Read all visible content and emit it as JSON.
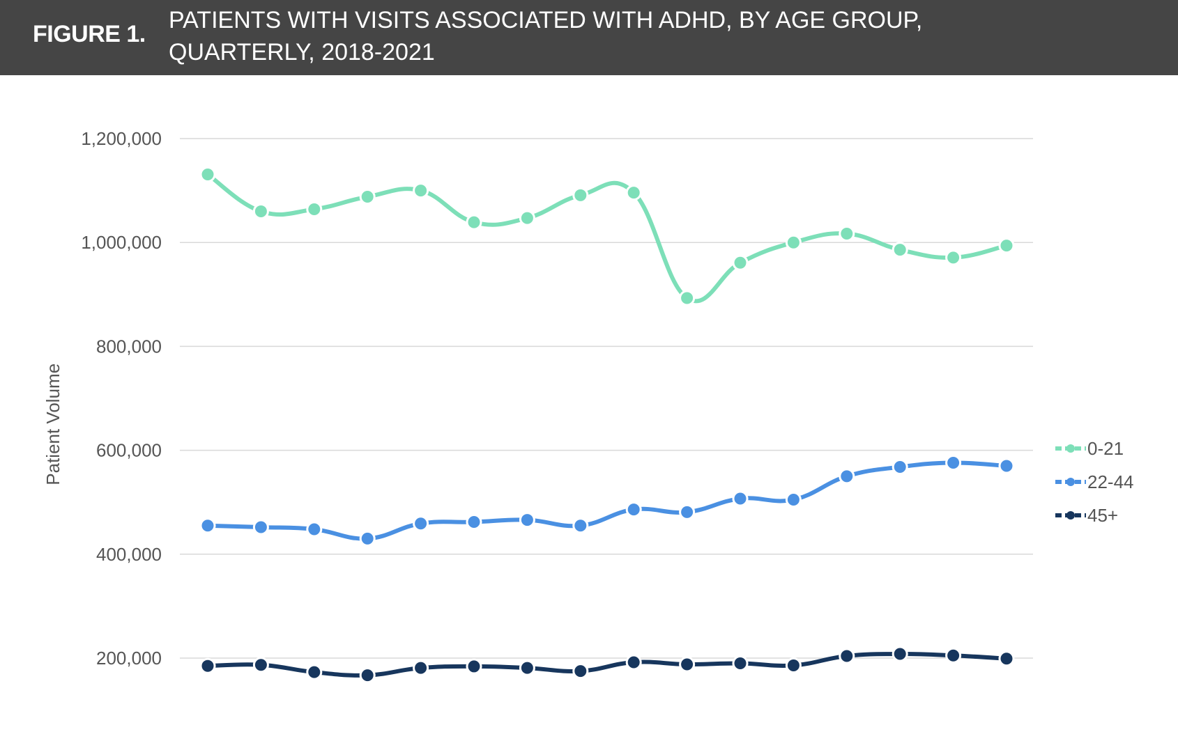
{
  "header": {
    "figure_label": "FIGURE 1.",
    "title_line1": "PATIENTS WITH VISITS ASSOCIATED WITH ADHD, BY AGE GROUP,",
    "title_line2": "QUARTERLY, 2018-2021"
  },
  "colors": {
    "header_bg": "#454545",
    "grid": "#d9d9d9"
  },
  "chart_data": {
    "type": "line",
    "title": "PATIENTS WITH VISITS ASSOCIATED WITH ADHD, BY AGE GROUP, QUARTERLY, 2018-2021",
    "xlabel": "",
    "ylabel": "Patient Volume",
    "ylim": [
      200000,
      1200000
    ],
    "yticks": [
      200000,
      400000,
      600000,
      800000,
      1000000,
      1200000
    ],
    "ytick_labels": [
      "200,000",
      "400,000",
      "600,000",
      "800,000",
      "1,000,000",
      "1,200,000"
    ],
    "grid": "horizontal",
    "legend": "right",
    "x": [
      1,
      2,
      3,
      4,
      5,
      6,
      7,
      8,
      9,
      10,
      11,
      12,
      13,
      14,
      15,
      16
    ],
    "series": [
      {
        "name": "0-21",
        "color": "#7ddfb8",
        "values": [
          1131000,
          1060000,
          1064000,
          1088000,
          1100000,
          1039000,
          1047000,
          1091000,
          1096000,
          893000,
          961000,
          1000000,
          1017000,
          986000,
          971000,
          994000
        ]
      },
      {
        "name": "22-44",
        "color": "#4a90e2",
        "values": [
          455000,
          452000,
          448000,
          430000,
          459000,
          462000,
          466000,
          455000,
          486000,
          481000,
          507000,
          505000,
          550000,
          568000,
          576000,
          570000
        ]
      },
      {
        "name": "45+",
        "color": "#17365d",
        "values": [
          185000,
          187000,
          173000,
          167000,
          181000,
          184000,
          181000,
          175000,
          192000,
          188000,
          190000,
          186000,
          204000,
          208000,
          205000,
          199000
        ]
      }
    ]
  }
}
